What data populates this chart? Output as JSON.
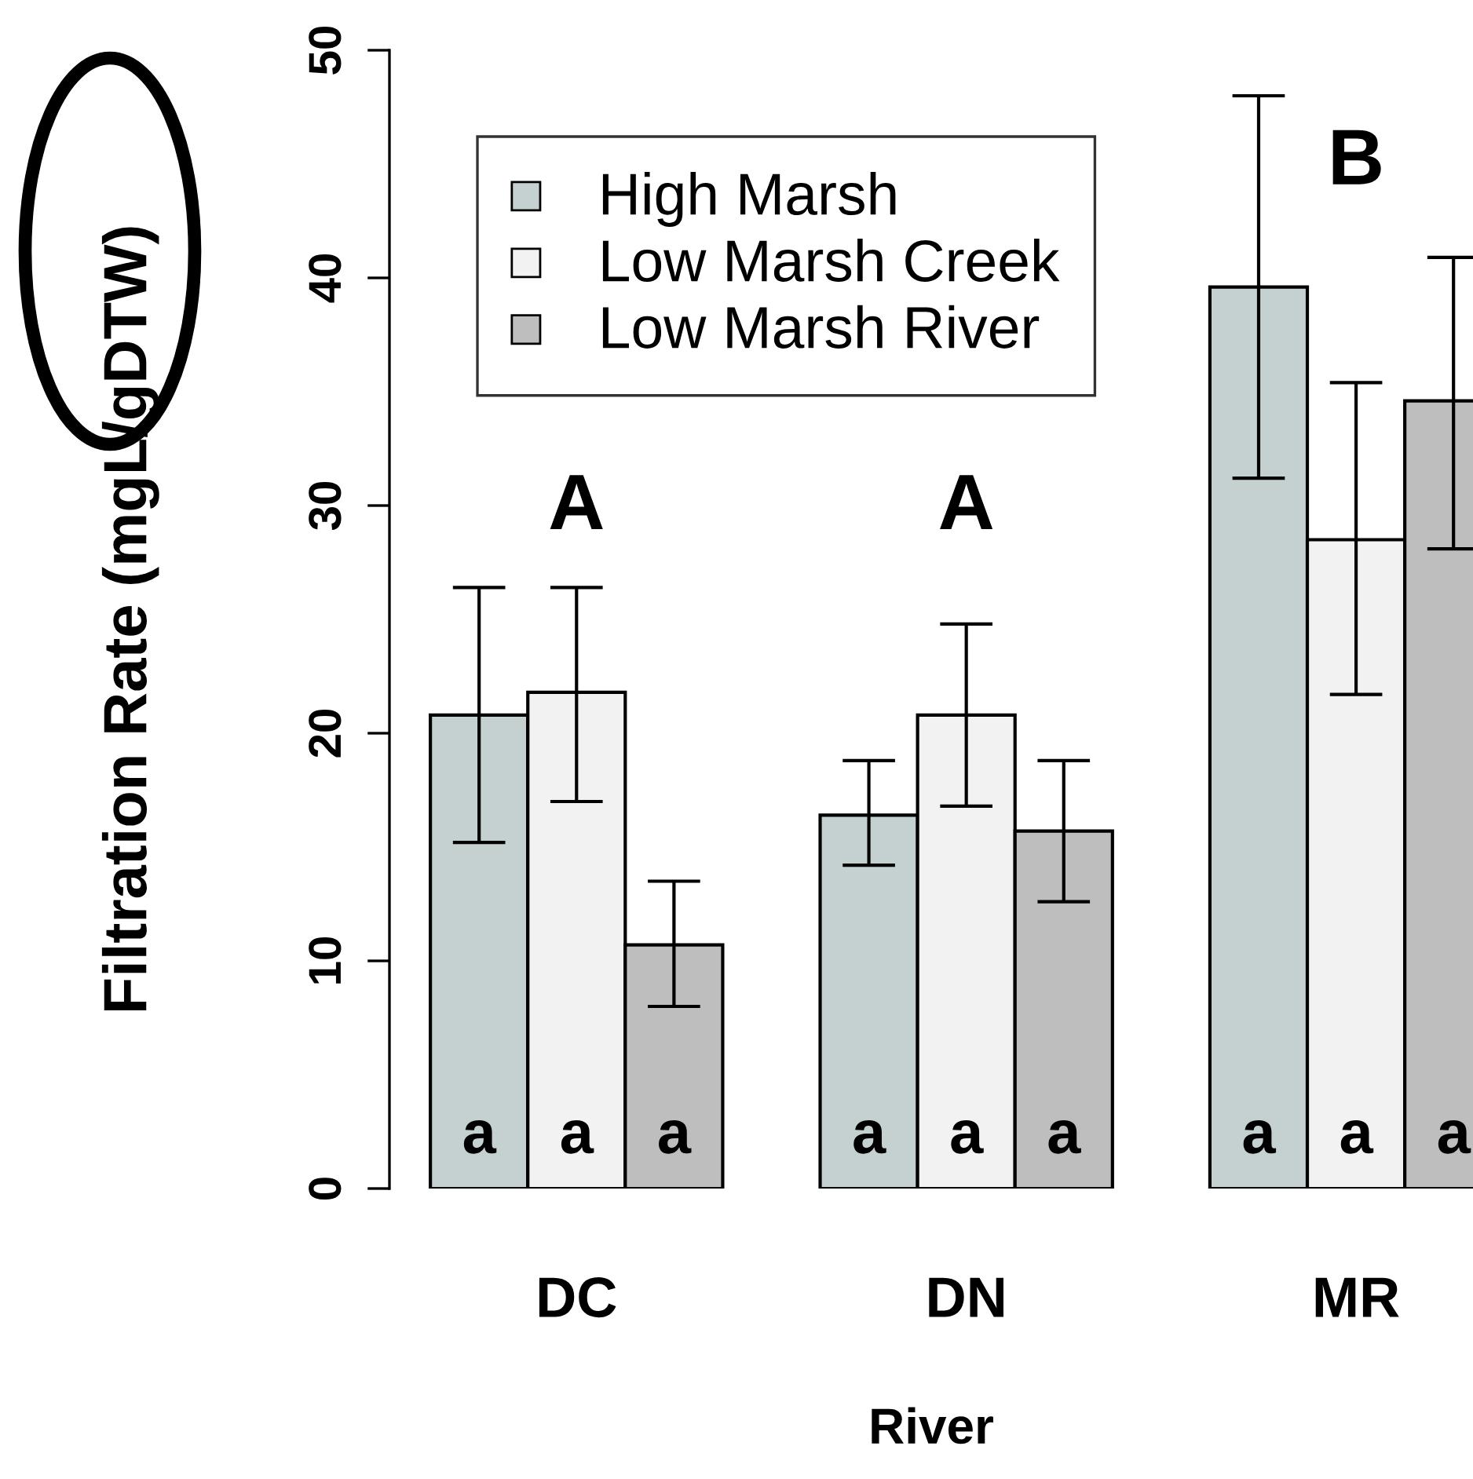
{
  "chart_data": {
    "type": "bar",
    "xlabel": "River",
    "ylabel": "Filtration Rate (mgL/gDTW)",
    "categories": [
      "DC",
      "DN",
      "MR"
    ],
    "series": [
      {
        "name": "High Marsh",
        "color": "#c5d0d0",
        "values": [
          20.8,
          16.4,
          39.6
        ],
        "errors": [
          [
            15.2,
            26.4
          ],
          [
            14.2,
            18.8
          ],
          [
            31.2,
            48.0
          ]
        ],
        "value_labels": [
          "a",
          "a",
          "a"
        ]
      },
      {
        "name": "Low Marsh Creek",
        "color": "#f2f2f2",
        "values": [
          21.8,
          20.8,
          28.5
        ],
        "errors": [
          [
            17.0,
            26.4
          ],
          [
            16.8,
            24.8
          ],
          [
            21.7,
            35.4
          ]
        ],
        "value_labels": [
          "a",
          "a",
          "a"
        ]
      },
      {
        "name": "Low Marsh River",
        "color": "#bebebe",
        "values": [
          10.7,
          15.7,
          34.6
        ],
        "errors": [
          [
            8.0,
            13.5
          ],
          [
            12.6,
            18.8
          ],
          [
            28.1,
            40.9
          ]
        ],
        "value_labels": [
          "a",
          "a",
          "a"
        ]
      }
    ],
    "annotations": [
      "A",
      "A",
      "B"
    ],
    "ylim": [
      0,
      50
    ],
    "yticks": [
      0,
      10,
      20,
      30,
      40,
      50
    ],
    "legend": "top left",
    "grid": false
  }
}
